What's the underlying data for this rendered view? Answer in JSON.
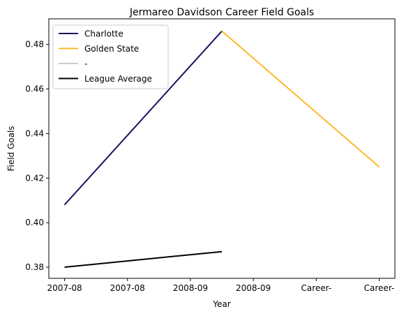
{
  "chart_data": {
    "type": "line",
    "title": "Jermareo Davidson Career Field Goals",
    "xlabel": "Year",
    "ylabel": "Field Goals",
    "x_tick_labels": [
      "2007-08",
      "2007-08",
      "2008-09",
      "2008-09",
      "Career-",
      "Career-"
    ],
    "ylim": [
      0.375,
      0.4915
    ],
    "y_ticks": [
      0.38,
      0.4,
      0.42,
      0.44,
      0.46,
      0.48
    ],
    "y_tick_labels": [
      "0.38",
      "0.40",
      "0.42",
      "0.44",
      "0.46",
      "0.48"
    ],
    "grid": false,
    "legend_position": "top-left",
    "series": [
      {
        "name": "Charlotte",
        "color": "#1d1160",
        "points": [
          [
            0,
            0.408
          ],
          [
            2.5,
            0.486
          ]
        ]
      },
      {
        "name": "Golden State",
        "color": "#fdb927",
        "points": [
          [
            2.5,
            0.486
          ],
          [
            5,
            0.425
          ]
        ]
      },
      {
        "name": "-",
        "color": "#c4ced4",
        "points": []
      },
      {
        "name": "League Average",
        "color": "#000000",
        "points": [
          [
            0,
            0.38
          ],
          [
            2.5,
            0.387
          ]
        ]
      }
    ]
  }
}
